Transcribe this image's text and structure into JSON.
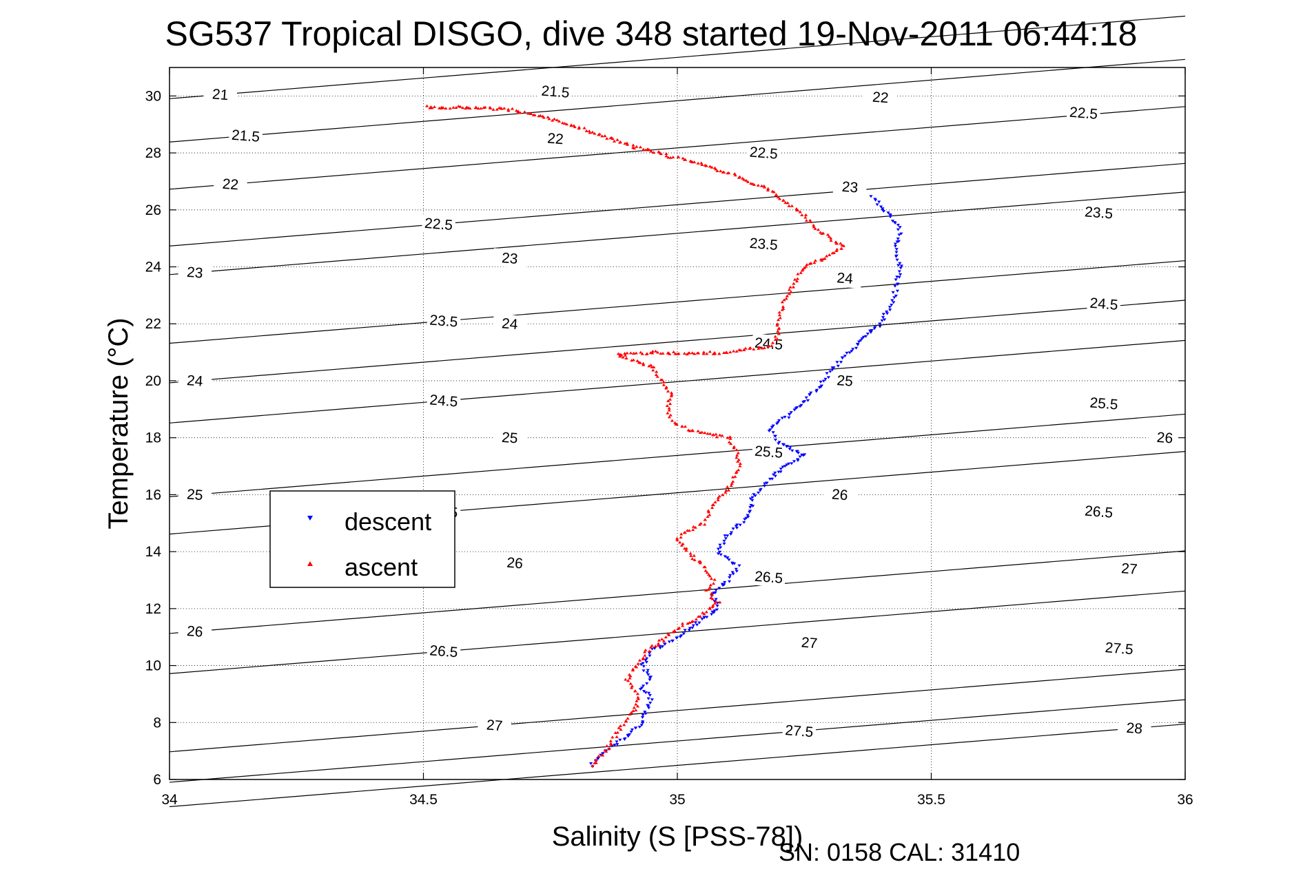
{
  "chart_data": {
    "type": "scatter",
    "title": "SG537 Tropical DISGO, dive 348 started 19-Nov-2011 06:44:18",
    "xlabel": "Salinity (S [PSS-78])",
    "ylabel": "Temperature (°C)",
    "xlim": [
      34,
      36
    ],
    "ylim": [
      6,
      31
    ],
    "xticks": [
      34,
      34.5,
      35,
      35.5,
      36
    ],
    "xtick_labels": [
      "34",
      "34.5",
      "35",
      "35.5",
      "36"
    ],
    "yticks": [
      6,
      8,
      10,
      12,
      14,
      16,
      18,
      20,
      22,
      24,
      26,
      28,
      30
    ],
    "ytick_labels": [
      "6",
      "8",
      "10",
      "12",
      "14",
      "16",
      "18",
      "20",
      "22",
      "24",
      "26",
      "28",
      "30"
    ],
    "grid": true,
    "legend_position": "center-left",
    "footer": "SN: 0158  CAL: 31410",
    "isopycnal_contours": [
      {
        "level": "21",
        "labels": [
          [
            34.1,
            30.05
          ]
        ]
      },
      {
        "level": "21.5",
        "labels": [
          [
            34.15,
            28.6
          ],
          [
            34.76,
            30.15
          ]
        ]
      },
      {
        "level": "22",
        "labels": [
          [
            34.12,
            26.9
          ],
          [
            34.76,
            28.5
          ],
          [
            35.4,
            29.95
          ]
        ]
      },
      {
        "level": "22.5",
        "labels": [
          [
            34.53,
            25.5
          ],
          [
            35.17,
            28.0
          ],
          [
            35.8,
            29.4
          ]
        ]
      },
      {
        "level": "23",
        "labels": [
          [
            34.05,
            23.8
          ],
          [
            34.67,
            24.3
          ],
          [
            35.34,
            26.8
          ]
        ]
      },
      {
        "level": "23.5",
        "labels": [
          [
            34.54,
            22.1
          ],
          [
            35.17,
            24.8
          ],
          [
            35.83,
            25.9
          ]
        ]
      },
      {
        "level": "24",
        "labels": [
          [
            34.05,
            20.0
          ],
          [
            34.67,
            22.0
          ],
          [
            35.33,
            23.6
          ]
        ]
      },
      {
        "level": "24.5",
        "labels": [
          [
            34.54,
            19.3
          ],
          [
            35.18,
            21.3
          ],
          [
            35.84,
            22.7
          ]
        ]
      },
      {
        "level": "25",
        "labels": [
          [
            34.05,
            16.0
          ],
          [
            34.67,
            18.0
          ],
          [
            35.33,
            20.0
          ]
        ]
      },
      {
        "level": "25.5",
        "labels": [
          [
            34.54,
            15.4
          ],
          [
            35.18,
            17.5
          ],
          [
            35.84,
            19.2
          ]
        ]
      },
      {
        "level": "26",
        "labels": [
          [
            34.05,
            11.2
          ],
          [
            34.68,
            13.6
          ],
          [
            35.32,
            16.0
          ],
          [
            35.96,
            18.0
          ]
        ]
      },
      {
        "level": "26.5",
        "labels": [
          [
            34.54,
            10.5
          ],
          [
            35.18,
            13.1
          ],
          [
            35.83,
            15.4
          ]
        ]
      },
      {
        "level": "27",
        "labels": [
          [
            34.64,
            7.9
          ],
          [
            35.26,
            10.8
          ],
          [
            35.89,
            13.4
          ]
        ]
      },
      {
        "level": "27.5",
        "labels": [
          [
            35.24,
            7.7
          ],
          [
            35.87,
            10.6
          ]
        ]
      },
      {
        "level": "28",
        "labels": [
          [
            35.9,
            7.8
          ]
        ]
      }
    ],
    "series": [
      {
        "name": "descent",
        "color": "#0000ff",
        "marker": "triangle-down",
        "path": [
          [
            34.83,
            6.5
          ],
          [
            34.86,
            7.0
          ],
          [
            34.9,
            7.5
          ],
          [
            34.93,
            8.0
          ],
          [
            34.94,
            8.5
          ],
          [
            34.95,
            8.8
          ],
          [
            34.93,
            9.2
          ],
          [
            34.95,
            9.6
          ],
          [
            34.93,
            10.0
          ],
          [
            34.95,
            10.5
          ],
          [
            35.0,
            11.0
          ],
          [
            35.04,
            11.5
          ],
          [
            35.08,
            12.0
          ],
          [
            35.07,
            12.5
          ],
          [
            35.1,
            13.0
          ],
          [
            35.12,
            13.5
          ],
          [
            35.08,
            14.0
          ],
          [
            35.1,
            14.6
          ],
          [
            35.14,
            15.2
          ],
          [
            35.15,
            16.0
          ],
          [
            35.2,
            16.8
          ],
          [
            35.25,
            17.4
          ],
          [
            35.2,
            17.8
          ],
          [
            35.18,
            18.3
          ],
          [
            35.22,
            18.8
          ],
          [
            35.25,
            19.3
          ],
          [
            35.28,
            19.8
          ],
          [
            35.3,
            20.3
          ],
          [
            35.33,
            20.9
          ],
          [
            35.37,
            21.5
          ],
          [
            35.4,
            22.0
          ],
          [
            35.42,
            22.6
          ],
          [
            35.43,
            23.2
          ],
          [
            35.44,
            24.0
          ],
          [
            35.43,
            24.6
          ],
          [
            35.44,
            25.2
          ],
          [
            35.42,
            25.8
          ],
          [
            35.38,
            26.5
          ]
        ]
      },
      {
        "name": "ascent",
        "color": "#ff0000",
        "marker": "triangle-up",
        "path": [
          [
            34.83,
            6.5
          ],
          [
            34.86,
            7.0
          ],
          [
            34.88,
            7.6
          ],
          [
            34.9,
            8.1
          ],
          [
            34.92,
            8.6
          ],
          [
            34.92,
            9.0
          ],
          [
            34.9,
            9.5
          ],
          [
            34.92,
            10.0
          ],
          [
            34.94,
            10.5
          ],
          [
            34.97,
            10.9
          ],
          [
            35.0,
            11.3
          ],
          [
            35.05,
            11.8
          ],
          [
            35.08,
            12.2
          ],
          [
            35.06,
            12.6
          ],
          [
            35.07,
            13.0
          ],
          [
            35.05,
            13.5
          ],
          [
            35.02,
            14.0
          ],
          [
            35.0,
            14.5
          ],
          [
            35.05,
            15.0
          ],
          [
            35.07,
            15.6
          ],
          [
            35.1,
            16.2
          ],
          [
            35.12,
            16.8
          ],
          [
            35.12,
            17.4
          ],
          [
            35.1,
            18.0
          ],
          [
            35.02,
            18.3
          ],
          [
            34.99,
            18.6
          ],
          [
            34.98,
            19.0
          ],
          [
            34.99,
            19.5
          ],
          [
            34.97,
            20.0
          ],
          [
            34.95,
            20.5
          ],
          [
            34.88,
            20.9
          ],
          [
            34.96,
            21.0
          ],
          [
            35.03,
            20.95
          ],
          [
            35.1,
            21.0
          ],
          [
            35.18,
            21.2
          ],
          [
            35.2,
            21.6
          ],
          [
            35.2,
            22.2
          ],
          [
            35.21,
            22.8
          ],
          [
            35.23,
            23.4
          ],
          [
            35.25,
            24.0
          ],
          [
            35.3,
            24.4
          ],
          [
            35.33,
            24.7
          ],
          [
            35.3,
            25.0
          ],
          [
            35.27,
            25.4
          ],
          [
            35.25,
            25.8
          ],
          [
            35.22,
            26.2
          ],
          [
            35.18,
            26.7
          ],
          [
            35.14,
            27.0
          ],
          [
            35.1,
            27.3
          ],
          [
            35.05,
            27.6
          ],
          [
            34.98,
            27.9
          ],
          [
            34.9,
            28.3
          ],
          [
            34.82,
            28.8
          ],
          [
            34.75,
            29.2
          ],
          [
            34.68,
            29.5
          ],
          [
            34.6,
            29.6
          ],
          [
            34.5,
            29.6
          ]
        ]
      }
    ]
  }
}
